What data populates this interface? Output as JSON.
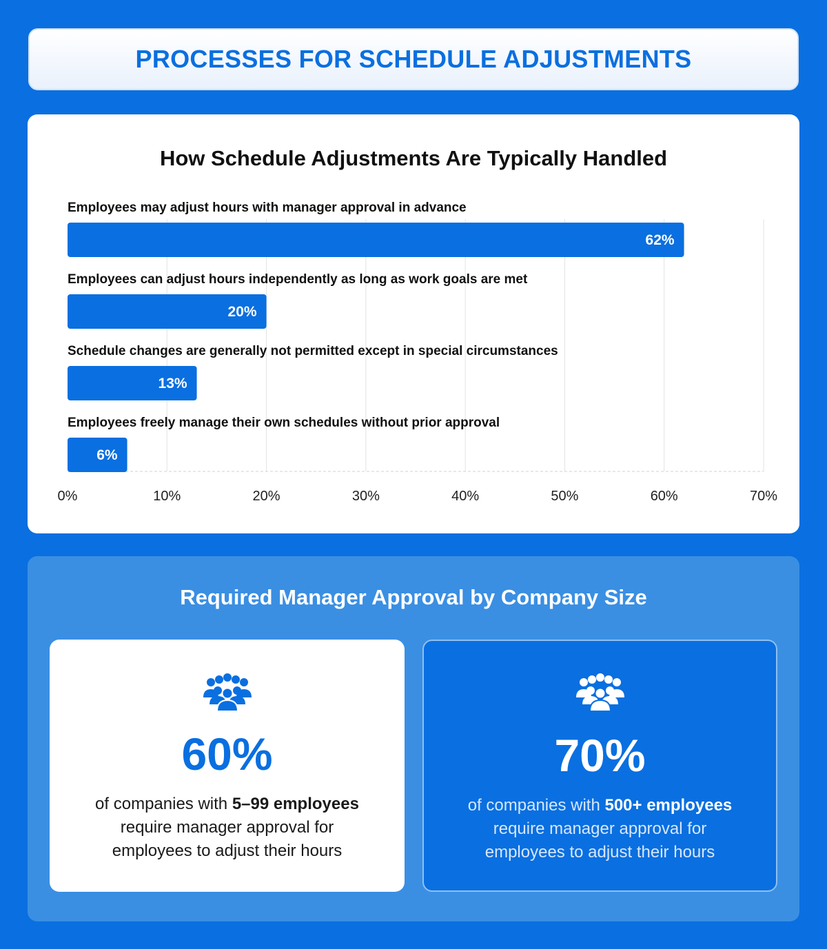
{
  "banner": {
    "title": "PROCESSES FOR SCHEDULE ADJUSTMENTS"
  },
  "colors": {
    "accent": "#0a6fe0",
    "background": "#0a6fe0",
    "panel": "#3a8fe3",
    "white": "#ffffff"
  },
  "chart_data": {
    "type": "bar",
    "orientation": "horizontal",
    "title": "How Schedule Adjustments Are Typically Handled",
    "categories": [
      "Employees may adjust hours with manager approval in advance",
      "Employees can adjust hours independently as long as work goals are met",
      "Schedule changes are generally not permitted except in special circumstances",
      "Employees freely manage their own schedules without prior approval"
    ],
    "values": [
      62,
      20,
      13,
      6
    ],
    "value_labels": [
      "62%",
      "20%",
      "13%",
      "6%"
    ],
    "xlim": [
      0,
      70
    ],
    "xticks": [
      0,
      10,
      20,
      30,
      40,
      50,
      60,
      70
    ],
    "xtick_labels": [
      "0%",
      "10%",
      "20%",
      "30%",
      "40%",
      "50%",
      "60%",
      "70%"
    ],
    "grid": true,
    "bar_color": "#0a6fe0"
  },
  "size_section": {
    "title": "Required Manager Approval by Company Size",
    "cards": [
      {
        "icon": "people-group-icon",
        "value": "60%",
        "desc_prefix": "of companies with ",
        "desc_bold": "5–99 employees",
        "desc_line2": "require manager approval for",
        "desc_line3": "employees to adjust their hours"
      },
      {
        "icon": "people-group-icon",
        "value": "70%",
        "desc_prefix": "of companies with ",
        "desc_bold": "500+ employees",
        "desc_line2": "require manager approval for",
        "desc_line3": "employees to adjust their hours"
      }
    ]
  }
}
